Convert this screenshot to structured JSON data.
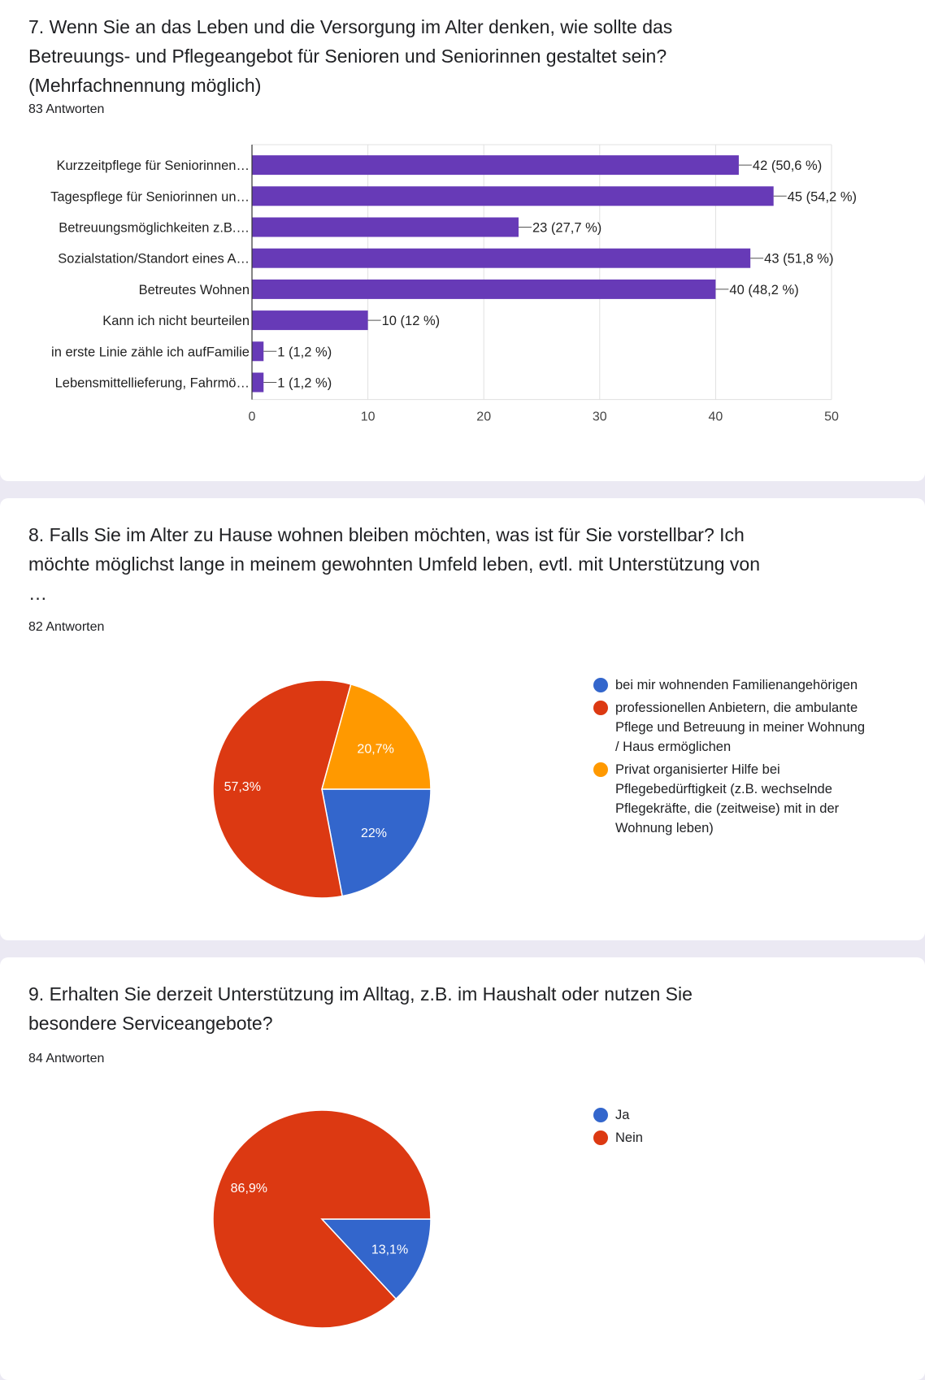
{
  "q7": {
    "title": "7. Wenn Sie an das Leben und die Versorgung im Alter denken, wie sollte das Betreuungs- und Pflegeangebot für Senioren und Seniorinnen gestaltet sein? (Mehrfachnennung möglich)",
    "count": "83 Antworten"
  },
  "q8": {
    "title": "8. Falls Sie im Alter zu Hause wohnen bleiben möchten, was ist für Sie vorstellbar? Ich möchte möglichst lange in meinem gewohnten Umfeld leben, evtl. mit Unterstützung von …",
    "count": "82 Antworten"
  },
  "q9": {
    "title": "9. Erhalten Sie derzeit Unterstützung im Alltag, z.B. im Haushalt oder nutzen Sie besondere Serviceangebote?",
    "count": "84 Antworten"
  },
  "chart_data": [
    {
      "type": "bar",
      "orientation": "horizontal",
      "categories": [
        "Kurzzeitpflege für Seniorinnen…",
        "Tagespflege für Seniorinnen un…",
        "Betreuungsmöglichkeiten z.B.…",
        "Sozialstation/Standort eines A…",
        "Betreutes Wohnen",
        "Kann ich nicht beurteilen",
        "in erste Linie zähle ich aufFamilie",
        "Lebensmittellieferung, Fahrmö…"
      ],
      "values": [
        42,
        45,
        23,
        43,
        40,
        10,
        1,
        1
      ],
      "data_labels": [
        "42 (50,6 %)",
        "45 (54,2 %)",
        "23 (27,7 %)",
        "43 (51,8 %)",
        "40 (48,2 %)",
        "10 (12 %)",
        "1 (1,2 %)",
        "1 (1,2 %)"
      ],
      "xlim": [
        0,
        50
      ],
      "xticks": [
        "0",
        "10",
        "20",
        "30",
        "40",
        "50"
      ],
      "grid": true,
      "color": "#673ab7"
    },
    {
      "type": "pie",
      "slices": [
        {
          "label": "bei mir wohnenden Familienangehörigen",
          "value": 22,
          "display": "22%",
          "color": "#3366cc"
        },
        {
          "label": "professionellen Anbietern, die ambulante Pflege und Betreuung in meiner Wohnung / Haus ermöglichen",
          "value": 57.3,
          "display": "57,3%",
          "color": "#dc3912"
        },
        {
          "label": "Privat organisierter Hilfe bei Pflegebedürftigkeit (z.B. wechselnde Pflegekräfte, die (zeitweise) mit in der Wohnung leben)",
          "value": 20.7,
          "display": "20,7%",
          "color": "#ff9900"
        }
      ],
      "legend_position": "right"
    },
    {
      "type": "pie",
      "slices": [
        {
          "label": "Ja",
          "value": 13.1,
          "display": "13,1%",
          "color": "#3366cc"
        },
        {
          "label": "Nein",
          "value": 86.9,
          "display": "86,9%",
          "color": "#dc3912"
        }
      ],
      "legend_position": "right"
    }
  ]
}
